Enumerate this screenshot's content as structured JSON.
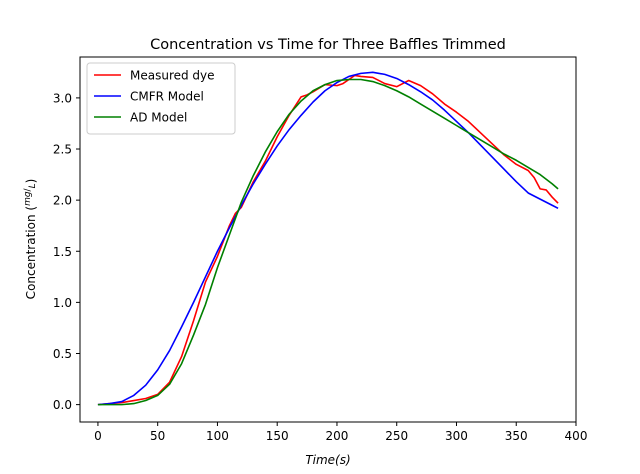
{
  "chart_data": {
    "type": "line",
    "title": "Concentration vs Time for Three Baffles Trimmed",
    "xlabel": "Time(s)",
    "ylabel": "Concentration (mg/L)",
    "xlim": [
      -15,
      400
    ],
    "ylim": [
      -0.17,
      3.4
    ],
    "xticks": [
      0,
      50,
      100,
      150,
      200,
      250,
      300,
      350,
      400
    ],
    "yticks": [
      0.0,
      0.5,
      1.0,
      1.5,
      2.0,
      2.5,
      3.0
    ],
    "xtick_labels": [
      "0",
      "50",
      "100",
      "150",
      "200",
      "250",
      "300",
      "350",
      "400"
    ],
    "ytick_labels": [
      "0.0",
      "0.5",
      "1.0",
      "1.5",
      "2.0",
      "2.5",
      "3.0"
    ],
    "grid": false,
    "legend_position": "top-left",
    "series": [
      {
        "name": "Measured dye",
        "color": "#ff0000",
        "x": [
          0,
          10,
          20,
          30,
          40,
          50,
          60,
          70,
          80,
          90,
          100,
          110,
          115,
          120,
          130,
          140,
          150,
          160,
          170,
          175,
          180,
          190,
          200,
          205,
          210,
          215,
          220,
          230,
          240,
          250,
          260,
          270,
          280,
          290,
          300,
          310,
          320,
          330,
          340,
          350,
          360,
          365,
          370,
          375,
          380,
          385
        ],
        "y": [
          0.0,
          0.01,
          0.02,
          0.04,
          0.06,
          0.1,
          0.22,
          0.47,
          0.82,
          1.2,
          1.45,
          1.75,
          1.87,
          1.93,
          2.18,
          2.38,
          2.62,
          2.83,
          3.01,
          3.03,
          3.06,
          3.13,
          3.12,
          3.14,
          3.18,
          3.22,
          3.21,
          3.2,
          3.14,
          3.11,
          3.17,
          3.12,
          3.04,
          2.94,
          2.86,
          2.77,
          2.66,
          2.55,
          2.44,
          2.35,
          2.29,
          2.22,
          2.11,
          2.1,
          2.03,
          1.97
        ]
      },
      {
        "name": "CMFR Model",
        "color": "#0000ff",
        "x": [
          0,
          10,
          20,
          30,
          40,
          50,
          60,
          70,
          80,
          90,
          100,
          110,
          120,
          130,
          140,
          150,
          160,
          170,
          180,
          190,
          200,
          210,
          220,
          230,
          240,
          250,
          260,
          270,
          280,
          290,
          300,
          310,
          320,
          330,
          340,
          350,
          360,
          370,
          380,
          385
        ],
        "y": [
          0.0,
          0.01,
          0.03,
          0.09,
          0.19,
          0.34,
          0.53,
          0.76,
          1.0,
          1.25,
          1.5,
          1.73,
          1.95,
          2.16,
          2.35,
          2.53,
          2.69,
          2.83,
          2.96,
          3.07,
          3.15,
          3.21,
          3.24,
          3.25,
          3.23,
          3.19,
          3.13,
          3.06,
          2.98,
          2.88,
          2.77,
          2.66,
          2.54,
          2.42,
          2.3,
          2.18,
          2.07,
          2.01,
          1.95,
          1.92
        ]
      },
      {
        "name": "AD Model",
        "color": "#008000",
        "x": [
          0,
          10,
          20,
          30,
          40,
          50,
          60,
          70,
          80,
          90,
          100,
          110,
          120,
          130,
          140,
          150,
          160,
          170,
          180,
          190,
          200,
          210,
          220,
          230,
          240,
          250,
          260,
          270,
          280,
          290,
          300,
          310,
          320,
          330,
          340,
          350,
          360,
          370,
          380,
          385
        ],
        "y": [
          0.0,
          0.0,
          0.0,
          0.01,
          0.04,
          0.09,
          0.2,
          0.4,
          0.68,
          0.98,
          1.34,
          1.66,
          1.98,
          2.24,
          2.47,
          2.67,
          2.84,
          2.97,
          3.07,
          3.13,
          3.17,
          3.18,
          3.18,
          3.16,
          3.12,
          3.07,
          3.01,
          2.94,
          2.87,
          2.8,
          2.73,
          2.66,
          2.59,
          2.52,
          2.45,
          2.39,
          2.32,
          2.25,
          2.16,
          2.11
        ]
      }
    ]
  }
}
